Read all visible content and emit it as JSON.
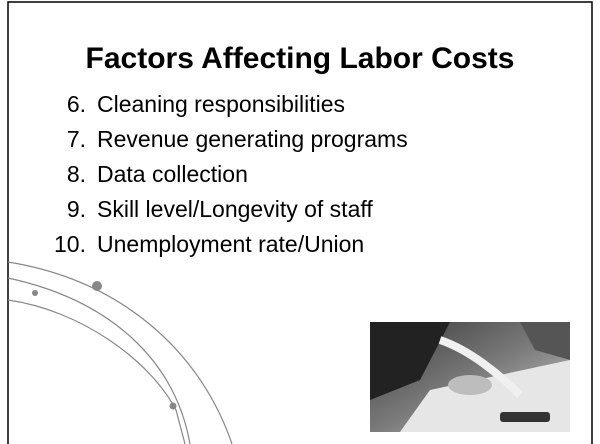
{
  "slide": {
    "title": "Factors Affecting Labor Costs",
    "items": [
      {
        "number": "6.",
        "text": "Cleaning responsibilities"
      },
      {
        "number": "7.",
        "text": "Revenue generating programs"
      },
      {
        "number": "8.",
        "text": "Data collection"
      },
      {
        "number": "9.",
        "text": "Skill level/Longevity of staff"
      },
      {
        "number": "10.",
        "text": "Unemployment rate/Union"
      }
    ]
  }
}
